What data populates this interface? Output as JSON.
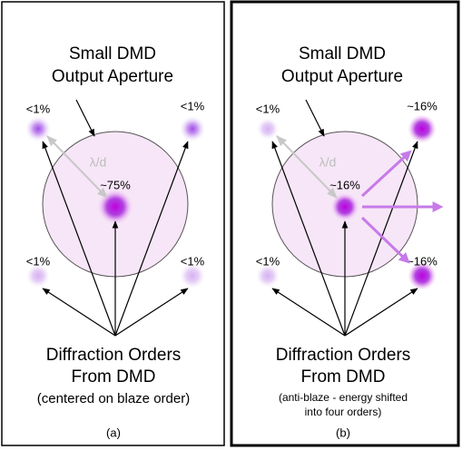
{
  "panels": [
    {
      "title": [
        "Small DMD",
        "Output Aperture"
      ],
      "spots": [
        {
          "label": "<1%"
        },
        {
          "label": "<1%"
        },
        {
          "label": "~75%"
        },
        {
          "label": "<1%"
        },
        {
          "label": "<1%"
        }
      ],
      "spacing_label": "λ/d",
      "caption": [
        "Diffraction Orders",
        "From DMD"
      ],
      "note": [
        "(centered on blaze order)"
      ],
      "sublabel": "(a)"
    },
    {
      "title": [
        "Small DMD",
        "Output Aperture"
      ],
      "spots": [
        {
          "label": "<1%"
        },
        {
          "label": "~16%"
        },
        {
          "label": "~16%"
        },
        {
          "label": "<1%"
        },
        {
          "label": "~16%"
        }
      ],
      "spacing_label": "λ/d",
      "caption": [
        "Diffraction Orders",
        "From DMD"
      ],
      "note": [
        "(anti-blaze - energy shifted",
        "into four orders)"
      ],
      "sublabel": "(b)"
    }
  ]
}
